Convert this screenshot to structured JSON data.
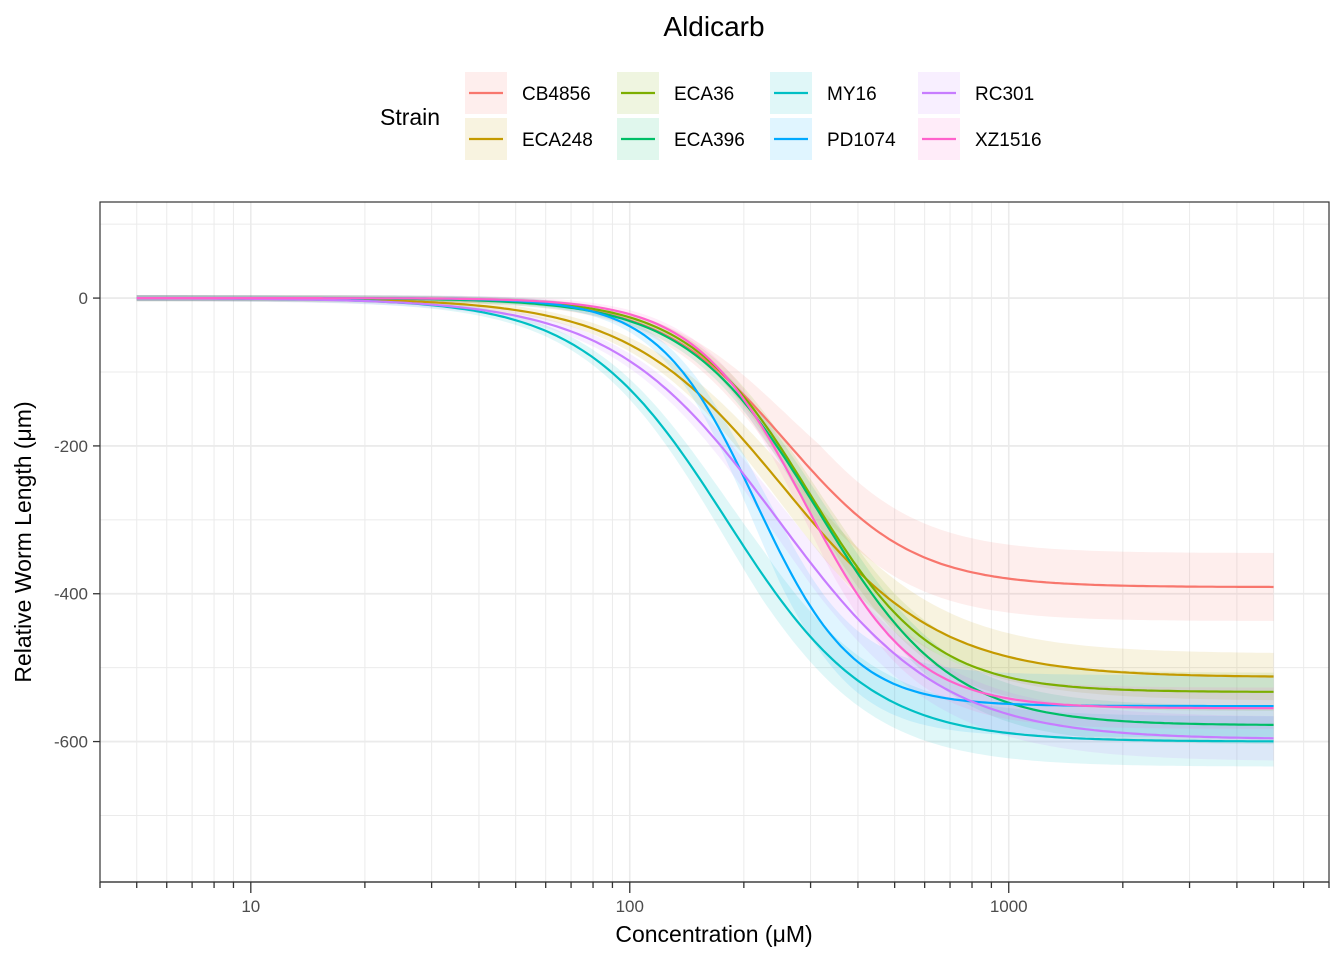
{
  "chart_data": {
    "type": "line",
    "title": "Aldicarb",
    "xlabel": "Concentration (μM)",
    "ylabel": "Relative Worm Length (μm)",
    "x_scale": "log10",
    "xlim": [
      4,
      7000
    ],
    "ylim": [
      -790,
      130
    ],
    "x_ticks": [
      10,
      100,
      1000
    ],
    "x_tick_labels": [
      "10",
      "100",
      "1000"
    ],
    "y_ticks": [
      0,
      -200,
      -400,
      -600
    ],
    "y_tick_labels": [
      "0",
      "-200",
      "-400",
      "-600"
    ],
    "x_range": [
      5,
      5000
    ],
    "grid": true,
    "legend": {
      "title": "Strain",
      "position": "top",
      "ncol": 4
    },
    "series": [
      {
        "name": "CB4856",
        "color": "#F8766D",
        "lower": -391,
        "ec50": 260,
        "hill": 2.6,
        "band": 42
      },
      {
        "name": "ECA248",
        "color": "#C49A00",
        "lower": -513,
        "ec50": 255,
        "hill": 2.1,
        "band": 28
      },
      {
        "name": "ECA36",
        "color": "#7CAE00",
        "lower": -533,
        "ec50": 300,
        "hill": 2.7,
        "band": 22
      },
      {
        "name": "ECA396",
        "color": "#00BE67",
        "lower": -578,
        "ec50": 315,
        "hill": 2.5,
        "band": 22
      },
      {
        "name": "MY16",
        "color": "#00BFC4",
        "lower": -600,
        "ec50": 180,
        "hill": 2.3,
        "band": 30
      },
      {
        "name": "PD1074",
        "color": "#00A9FF",
        "lower": -552,
        "ec50": 215,
        "hill": 3.4,
        "band": 38
      },
      {
        "name": "RC301",
        "color": "#C77CFF",
        "lower": -597,
        "ec50": 245,
        "hill": 2.0,
        "band": 26
      },
      {
        "name": "XZ1516",
        "color": "#FF61CC",
        "lower": -555,
        "ec50": 290,
        "hill": 3.0,
        "band": 24
      }
    ]
  }
}
